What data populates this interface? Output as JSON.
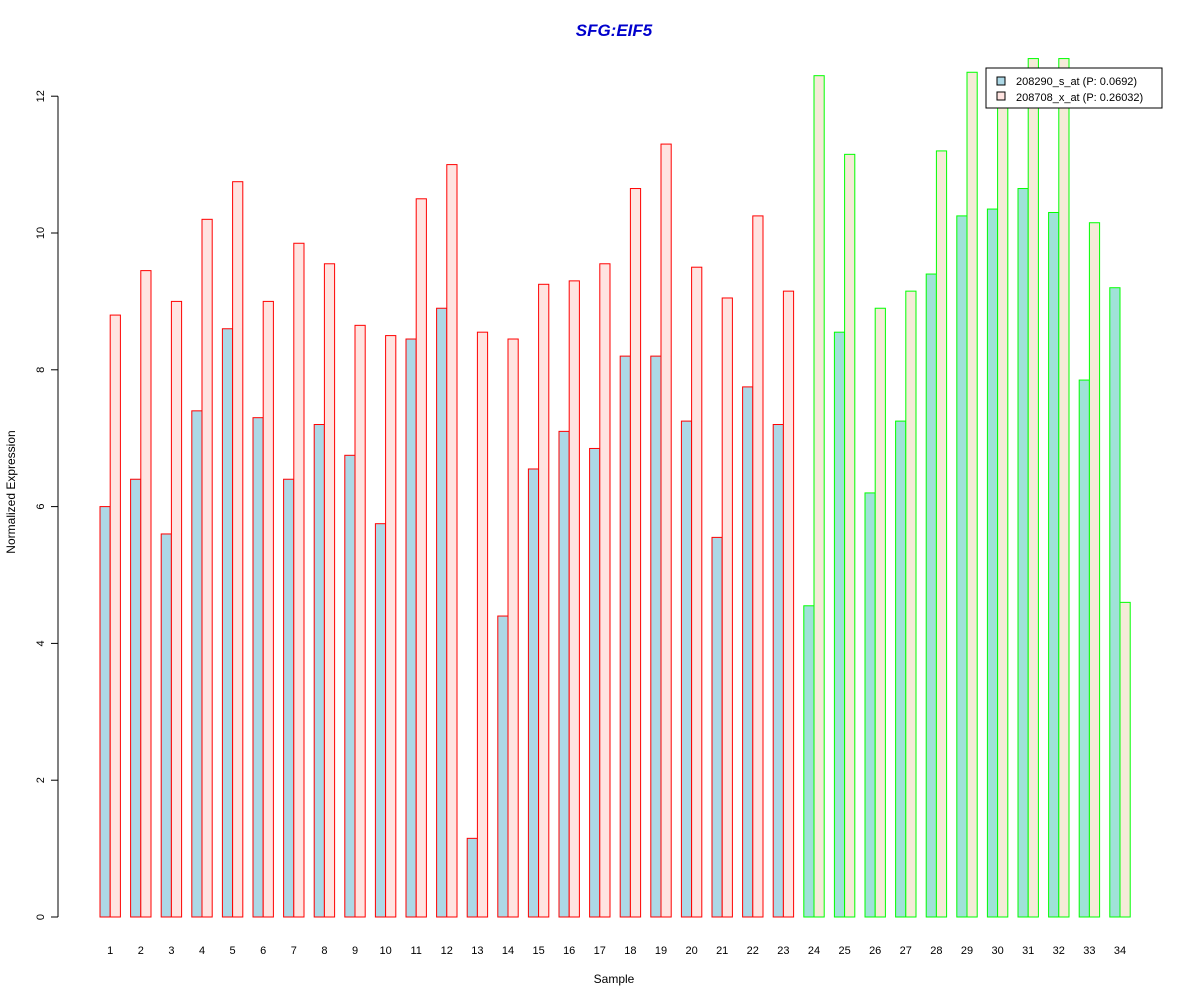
{
  "chart_data": {
    "type": "bar",
    "title": "SFG:EIF5",
    "xlabel": "Sample",
    "ylabel": "Normalized Expression",
    "ylim": [
      0,
      12.6
    ],
    "yticks": [
      "0",
      "2",
      "4",
      "6",
      "8",
      "10",
      "12"
    ],
    "grid": false,
    "legend_position": "top-right",
    "categories": [
      "1",
      "2",
      "3",
      "4",
      "5",
      "6",
      "7",
      "8",
      "9",
      "10",
      "11",
      "12",
      "13",
      "14",
      "15",
      "16",
      "17",
      "18",
      "19",
      "20",
      "21",
      "22",
      "23",
      "24",
      "25",
      "26",
      "27",
      "28",
      "29",
      "30",
      "31",
      "32",
      "33",
      "34"
    ],
    "series": [
      {
        "name": "208290_s_at (P: 0.0692)",
        "values": [
          6.0,
          6.4,
          5.6,
          7.4,
          8.6,
          7.3,
          6.4,
          7.2,
          6.75,
          5.75,
          8.45,
          8.9,
          1.15,
          4.4,
          6.55,
          7.1,
          6.85,
          8.2,
          8.2,
          7.25,
          5.55,
          7.75,
          7.2,
          4.55,
          8.55,
          6.2,
          7.25,
          9.4,
          10.25,
          10.35,
          10.65,
          10.3,
          7.85,
          9.2
        ]
      },
      {
        "name": "208708_x_at (P: 0.26032)",
        "values": [
          8.8,
          9.45,
          9.0,
          10.2,
          10.75,
          9.0,
          9.85,
          9.55,
          8.65,
          8.5,
          10.5,
          11.0,
          8.55,
          8.45,
          9.25,
          9.3,
          9.55,
          10.65,
          11.3,
          9.5,
          9.05,
          10.25,
          9.15,
          12.3,
          11.15,
          8.9,
          9.15,
          11.2,
          12.35,
          12.0,
          12.55,
          12.55,
          10.15,
          4.6
        ]
      }
    ],
    "group_split_after": 23,
    "colors": {
      "series1_fill_group1": "#add8e6",
      "series2_fill_group1": "#ffe4e1",
      "series1_fill_group2": "#9fe2d8",
      "series2_fill_group2": "#f5ebd8",
      "border_group1": "#ff0000",
      "border_group2": "#00ff00",
      "legend_series1": "#add8e6",
      "legend_series2": "#ffe4e1"
    }
  }
}
